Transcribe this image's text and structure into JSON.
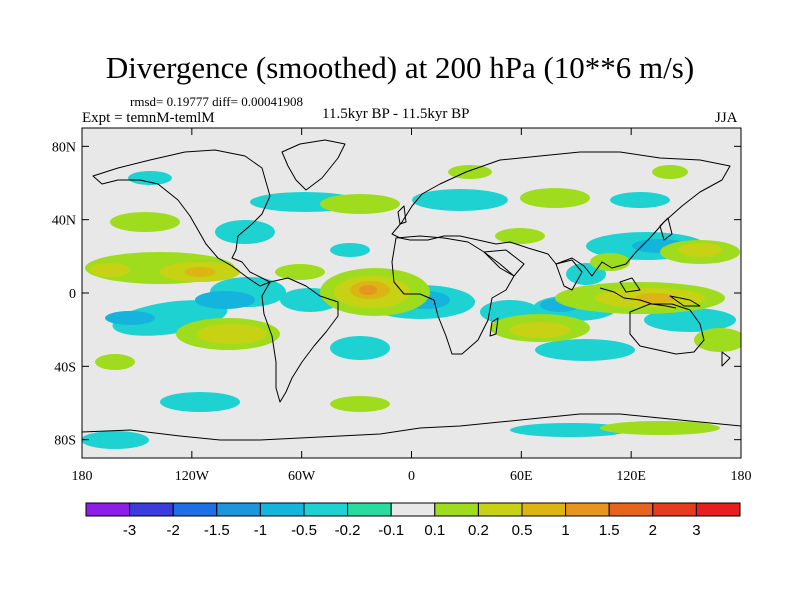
{
  "title": "Divergence (smoothed) at 200 hPa (10**6 m/s)",
  "stats": "rmsd= 0.19777 diff= 0.00041908",
  "experiment": "Expt = temnM-temlM",
  "period": "11.5kyr BP - 11.5kyr BP",
  "season": "JJA",
  "lat_ticks": [
    {
      "label": "80N",
      "lat": 80
    },
    {
      "label": "40N",
      "lat": 40
    },
    {
      "label": "0",
      "lat": 0
    },
    {
      "label": "40S",
      "lat": -40
    },
    {
      "label": "80S",
      "lat": -80
    }
  ],
  "lon_ticks": [
    {
      "label": "180",
      "lon": -180
    },
    {
      "label": "120W",
      "lon": -120
    },
    {
      "label": "60W",
      "lon": -60
    },
    {
      "label": "0",
      "lon": 0
    },
    {
      "label": "60E",
      "lon": 60
    },
    {
      "label": "120E",
      "lon": 120
    },
    {
      "label": "180",
      "lon": 180
    }
  ],
  "colorbar": {
    "labels": [
      "-3",
      "-2",
      "-1.5",
      "-1",
      "-0.5",
      "-0.2",
      "-0.1",
      "0.1",
      "0.2",
      "0.5",
      "1",
      "1.5",
      "2",
      "3"
    ],
    "colors": [
      "#8c1ee6",
      "#3c3cdc",
      "#1e6ee6",
      "#1e96dc",
      "#14b4dc",
      "#1ed2d2",
      "#28dca0",
      "#e8e8e8",
      "#a0dc1e",
      "#c8d214",
      "#dcb414",
      "#e6961e",
      "#e6641e",
      "#e63c1e",
      "#e61e1e"
    ]
  },
  "colors": {
    "ocean_background": "#e8e8e8",
    "coastline": "#000000"
  }
}
